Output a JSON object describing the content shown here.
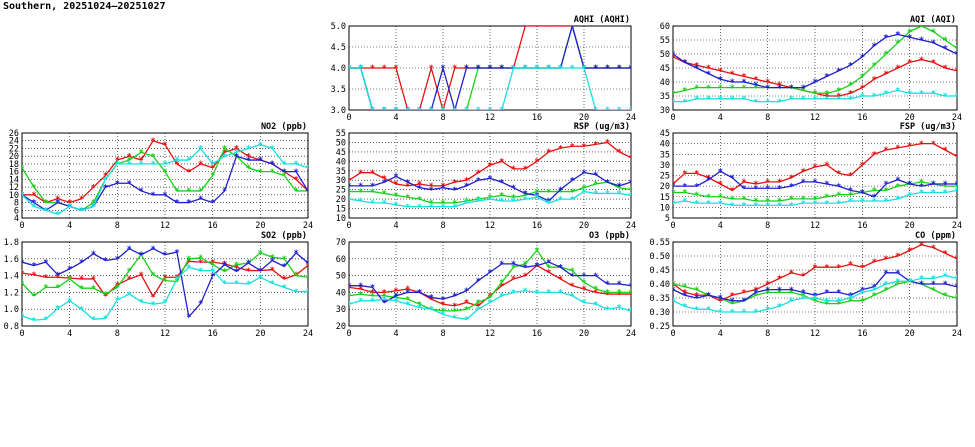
{
  "title": "Southern, 20251024–20251027",
  "colors": {
    "red": "#e81010",
    "green": "#19d019",
    "blue": "#1f1fcf",
    "cyan": "#18e0e0",
    "marker": "*"
  },
  "chart_data": [
    {
      "id": "aqhi",
      "type": "line",
      "title": "AQHI (AQHI)",
      "xlim": [
        0,
        24
      ],
      "ylim": [
        3,
        5
      ],
      "xticks": [
        0,
        4,
        8,
        12,
        16,
        20,
        24
      ],
      "yticks": [
        3.0,
        3.5,
        4.0,
        4.5,
        5.0
      ],
      "ytick_labels": [
        "3.0",
        "3.5",
        "4.0",
        "4.5",
        "5.0"
      ],
      "grid": true,
      "series": [
        {
          "color": "red",
          "values": [
            4,
            4,
            4,
            4,
            4,
            3,
            3,
            4,
            3,
            4,
            4,
            4,
            4,
            4,
            4,
            5,
            5,
            5,
            5,
            5,
            4,
            4,
            4,
            4,
            4
          ]
        },
        {
          "color": "green",
          "values": [
            4,
            4,
            3,
            3,
            3,
            3,
            3,
            3,
            3,
            3,
            3,
            4,
            4,
            4,
            4,
            4,
            4,
            4,
            4,
            5,
            4,
            4,
            4,
            4,
            4
          ]
        },
        {
          "color": "blue",
          "values": [
            4,
            4,
            3,
            3,
            3,
            3,
            3,
            3,
            4,
            3,
            4,
            4,
            4,
            4,
            4,
            4,
            4,
            4,
            4,
            5,
            4,
            4,
            4,
            4,
            4
          ]
        },
        {
          "color": "cyan",
          "values": [
            4,
            4,
            3,
            3,
            3,
            3,
            3,
            3,
            3,
            3,
            3,
            3,
            3,
            3,
            4,
            4,
            4,
            4,
            4,
            4,
            4,
            3,
            3,
            3,
            3
          ]
        }
      ]
    },
    {
      "id": "aqi",
      "type": "line",
      "title": "AQI (AQI)",
      "xlim": [
        0,
        24
      ],
      "ylim": [
        30,
        60
      ],
      "xticks": [
        0,
        4,
        8,
        12,
        16,
        20,
        24
      ],
      "yticks": [
        30,
        35,
        40,
        45,
        50,
        55,
        60
      ],
      "grid": true,
      "series": [
        {
          "color": "red",
          "values": [
            49,
            47,
            46,
            45,
            44,
            43,
            42,
            41,
            40,
            39,
            38,
            37,
            36,
            35,
            35,
            36,
            38,
            41,
            43,
            45,
            47,
            48,
            47,
            45,
            44
          ]
        },
        {
          "color": "green",
          "values": [
            36,
            37,
            38,
            38,
            38,
            38,
            38,
            38,
            38,
            38,
            38,
            37,
            36,
            36,
            37,
            39,
            42,
            46,
            50,
            54,
            58,
            60,
            58,
            55,
            52
          ]
        },
        {
          "color": "blue",
          "values": [
            50,
            47,
            45,
            43,
            41,
            40,
            40,
            39,
            38,
            38,
            38,
            38,
            40,
            42,
            44,
            46,
            49,
            53,
            56,
            57,
            56,
            55,
            54,
            52,
            50
          ]
        },
        {
          "color": "cyan",
          "values": [
            33,
            33,
            34,
            34,
            34,
            34,
            34,
            33,
            33,
            33,
            34,
            34,
            34,
            34,
            34,
            34,
            35,
            35,
            36,
            37,
            36,
            36,
            36,
            35,
            35
          ]
        }
      ]
    },
    {
      "id": "no2",
      "type": "line",
      "title": "NO2 (ppb)",
      "xlim": [
        0,
        24
      ],
      "ylim": [
        4,
        26
      ],
      "xticks": [
        0,
        4,
        8,
        12,
        16,
        20,
        24
      ],
      "yticks": [
        4,
        6,
        8,
        10,
        12,
        14,
        16,
        18,
        20,
        22,
        24,
        26
      ],
      "grid": true,
      "series": [
        {
          "color": "red",
          "values": [
            10,
            10,
            8,
            9,
            8,
            9,
            12,
            15,
            19,
            20,
            19,
            24,
            23,
            18,
            16,
            18,
            17,
            21,
            22,
            20,
            19,
            18,
            16,
            14,
            11
          ]
        },
        {
          "color": "green",
          "values": [
            17,
            12,
            8,
            8,
            7,
            6,
            8,
            14,
            18,
            19,
            21,
            20,
            16,
            11,
            11,
            11,
            15,
            22,
            20,
            17,
            16,
            16,
            15,
            11,
            11
          ]
        },
        {
          "color": "blue",
          "values": [
            10,
            8,
            6,
            8,
            7,
            6,
            7,
            12,
            13,
            13,
            11,
            10,
            10,
            8,
            8,
            9,
            8,
            11,
            20,
            19,
            19,
            18,
            16,
            16,
            11
          ]
        },
        {
          "color": "cyan",
          "values": [
            10,
            7,
            6,
            5,
            7,
            6,
            7,
            14,
            18,
            18,
            18,
            18,
            18,
            19,
            19,
            22,
            18,
            20,
            21,
            22,
            23,
            22,
            18,
            18,
            17
          ]
        }
      ]
    },
    {
      "id": "rsp",
      "type": "line",
      "title": "RSP (ug/m3)",
      "xlim": [
        0,
        24
      ],
      "ylim": [
        10,
        55
      ],
      "xticks": [
        0,
        4,
        8,
        12,
        16,
        20,
        24
      ],
      "yticks": [
        10,
        15,
        20,
        25,
        30,
        35,
        40,
        45,
        50,
        55
      ],
      "grid": true,
      "series": [
        {
          "color": "red",
          "values": [
            30,
            34,
            34,
            31,
            28,
            27,
            28,
            27,
            27,
            29,
            30,
            34,
            38,
            40,
            36,
            36,
            40,
            45,
            47,
            48,
            48,
            49,
            50,
            45,
            42
          ]
        },
        {
          "color": "green",
          "values": [
            24,
            24,
            24,
            23,
            22,
            21,
            20,
            18,
            18,
            18,
            19,
            20,
            21,
            22,
            21,
            22,
            24,
            24,
            24,
            24,
            26,
            28,
            29,
            26,
            25
          ]
        },
        {
          "color": "blue",
          "values": [
            27,
            27,
            27,
            29,
            32,
            29,
            26,
            25,
            26,
            25,
            27,
            30,
            31,
            29,
            26,
            23,
            22,
            19,
            25,
            30,
            34,
            33,
            29,
            27,
            29
          ]
        },
        {
          "color": "cyan",
          "values": [
            20,
            19,
            18,
            18,
            17,
            16,
            16,
            16,
            16,
            16,
            18,
            19,
            20,
            19,
            19,
            20,
            21,
            18,
            20,
            20,
            24,
            23,
            23,
            23,
            22
          ]
        }
      ]
    },
    {
      "id": "fsp",
      "type": "line",
      "title": "FSP (ug/m3)",
      "xlim": [
        0,
        24
      ],
      "ylim": [
        5,
        45
      ],
      "xticks": [
        0,
        4,
        8,
        12,
        16,
        20,
        24
      ],
      "yticks": [
        5,
        10,
        15,
        20,
        25,
        30,
        35,
        40,
        45
      ],
      "grid": true,
      "series": [
        {
          "color": "red",
          "values": [
            21,
            26,
            26,
            24,
            21,
            18,
            22,
            21,
            22,
            22,
            24,
            27,
            29,
            30,
            26,
            25,
            30,
            35,
            37,
            38,
            39,
            40,
            40,
            37,
            34
          ]
        },
        {
          "color": "green",
          "values": [
            17,
            17,
            16,
            15,
            15,
            14,
            14,
            13,
            13,
            13,
            14,
            14,
            14,
            15,
            16,
            16,
            17,
            18,
            18,
            20,
            21,
            22,
            21,
            20,
            20
          ]
        },
        {
          "color": "blue",
          "values": [
            20,
            20,
            20,
            23,
            27,
            24,
            19,
            19,
            19,
            19,
            20,
            22,
            22,
            21,
            20,
            18,
            17,
            15,
            21,
            23,
            21,
            20,
            21,
            21,
            21
          ]
        },
        {
          "color": "cyan",
          "values": [
            12,
            13,
            12,
            12,
            12,
            11,
            11,
            11,
            11,
            11,
            11,
            12,
            12,
            12,
            12,
            13,
            13,
            13,
            13,
            14,
            16,
            17,
            17,
            17,
            18
          ]
        }
      ]
    },
    {
      "id": "so2",
      "type": "line",
      "title": "SO2 (ppb)",
      "xlim": [
        0,
        24
      ],
      "ylim": [
        0.8,
        1.8
      ],
      "xticks": [
        0,
        4,
        8,
        12,
        16,
        20,
        24
      ],
      "yticks": [
        0.8,
        1.0,
        1.2,
        1.4,
        1.6,
        1.8
      ],
      "ytick_labels": [
        "0.8",
        "1.0",
        "1.2",
        "1.4",
        "1.6",
        "1.8"
      ],
      "grid": true,
      "series": [
        {
          "color": "red",
          "values": [
            1.43,
            1.41,
            1.38,
            1.38,
            1.37,
            1.36,
            1.36,
            1.16,
            1.29,
            1.36,
            1.41,
            1.15,
            1.38,
            1.38,
            1.57,
            1.56,
            1.56,
            1.54,
            1.5,
            1.46,
            1.46,
            1.47,
            1.36,
            1.41,
            1.52
          ]
        },
        {
          "color": "green",
          "values": [
            1.31,
            1.16,
            1.26,
            1.26,
            1.36,
            1.25,
            1.25,
            1.18,
            1.26,
            1.46,
            1.65,
            1.41,
            1.34,
            1.33,
            1.6,
            1.61,
            1.53,
            1.45,
            1.53,
            1.55,
            1.67,
            1.62,
            1.6,
            1.4,
            1.38
          ]
        },
        {
          "color": "blue",
          "values": [
            1.56,
            1.52,
            1.56,
            1.41,
            1.48,
            1.56,
            1.66,
            1.58,
            1.6,
            1.72,
            1.65,
            1.72,
            1.65,
            1.68,
            0.91,
            1.07,
            1.4,
            1.53,
            1.45,
            1.55,
            1.46,
            1.58,
            1.51,
            1.67,
            1.55
          ]
        },
        {
          "color": "cyan",
          "values": [
            0.92,
            0.87,
            0.88,
            1.01,
            1.1,
            1.0,
            0.88,
            0.89,
            1.11,
            1.18,
            1.09,
            1.06,
            1.08,
            1.36,
            1.5,
            1.46,
            1.46,
            1.31,
            1.31,
            1.3,
            1.38,
            1.31,
            1.26,
            1.21,
            1.21
          ]
        }
      ]
    },
    {
      "id": "o3",
      "type": "line",
      "title": "O3 (ppb)",
      "xlim": [
        0,
        24
      ],
      "ylim": [
        20,
        70
      ],
      "xticks": [
        0,
        4,
        8,
        12,
        16,
        20,
        24
      ],
      "yticks": [
        20,
        30,
        40,
        50,
        60,
        70
      ],
      "grid": true,
      "series": [
        {
          "color": "red",
          "values": [
            43,
            42,
            40,
            40,
            41,
            42,
            40,
            36,
            33,
            32,
            34,
            32,
            38,
            44,
            48,
            50,
            56,
            52,
            48,
            44,
            42,
            40,
            39,
            39,
            39
          ]
        },
        {
          "color": "green",
          "values": [
            38,
            39,
            38,
            38,
            37,
            36,
            33,
            30,
            29,
            29,
            30,
            34,
            37,
            46,
            55,
            57,
            65,
            55,
            55,
            53,
            46,
            42,
            40,
            40,
            40
          ]
        },
        {
          "color": "blue",
          "values": [
            44,
            44,
            43,
            34,
            38,
            40,
            40,
            37,
            36,
            38,
            41,
            47,
            52,
            57,
            57,
            55,
            56,
            58,
            55,
            50,
            50,
            50,
            45,
            45,
            44
          ]
        },
        {
          "color": "cyan",
          "values": [
            33,
            35,
            35,
            36,
            35,
            33,
            31,
            30,
            27,
            25,
            24,
            30,
            34,
            38,
            40,
            41,
            40,
            40,
            40,
            38,
            34,
            33,
            30,
            31,
            29
          ]
        }
      ]
    },
    {
      "id": "co",
      "type": "line",
      "title": "CO (ppm)",
      "xlim": [
        0,
        24
      ],
      "ylim": [
        0.25,
        0.55
      ],
      "xticks": [
        0,
        4,
        8,
        12,
        16,
        20,
        24
      ],
      "yticks": [
        0.25,
        0.3,
        0.35,
        0.4,
        0.45,
        0.5,
        0.55
      ],
      "ytick_labels": [
        "0.25",
        "0.30",
        "0.35",
        "0.40",
        "0.45",
        "0.50",
        "0.55"
      ],
      "grid": true,
      "series": [
        {
          "color": "red",
          "values": [
            0.4,
            0.37,
            0.36,
            0.36,
            0.34,
            0.36,
            0.37,
            0.38,
            0.4,
            0.42,
            0.44,
            0.43,
            0.46,
            0.46,
            0.46,
            0.47,
            0.46,
            0.48,
            0.49,
            0.5,
            0.52,
            0.54,
            0.53,
            0.51,
            0.49
          ]
        },
        {
          "color": "green",
          "values": [
            0.4,
            0.39,
            0.38,
            0.36,
            0.35,
            0.33,
            0.34,
            0.36,
            0.37,
            0.37,
            0.37,
            0.36,
            0.34,
            0.33,
            0.33,
            0.34,
            0.34,
            0.36,
            0.38,
            0.4,
            0.41,
            0.4,
            0.38,
            0.36,
            0.35
          ]
        },
        {
          "color": "blue",
          "values": [
            0.38,
            0.36,
            0.35,
            0.36,
            0.35,
            0.34,
            0.34,
            0.37,
            0.38,
            0.38,
            0.38,
            0.37,
            0.36,
            0.37,
            0.37,
            0.36,
            0.38,
            0.39,
            0.44,
            0.44,
            0.41,
            0.4,
            0.4,
            0.4,
            0.39
          ]
        },
        {
          "color": "cyan",
          "values": [
            0.34,
            0.32,
            0.31,
            0.31,
            0.3,
            0.3,
            0.3,
            0.3,
            0.31,
            0.32,
            0.34,
            0.35,
            0.35,
            0.34,
            0.34,
            0.35,
            0.37,
            0.38,
            0.4,
            0.41,
            0.41,
            0.42,
            0.42,
            0.43,
            0.42
          ]
        }
      ]
    }
  ]
}
